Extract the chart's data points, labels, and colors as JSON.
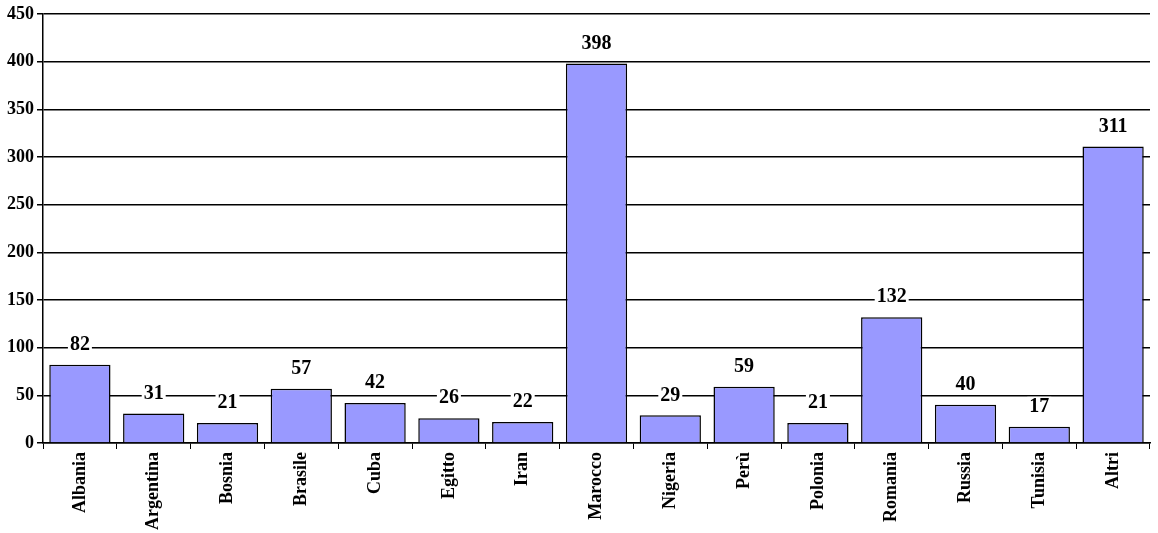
{
  "chart_data": {
    "type": "bar",
    "categories": [
      "Albania",
      "Argentina",
      "Bosnia",
      "Brasile",
      "Cuba",
      "Egitto",
      "Iran",
      "Marocco",
      "Nigeria",
      "Perù",
      "Polonia",
      "Romania",
      "Russia",
      "Tunisia",
      "Altri"
    ],
    "values": [
      82,
      31,
      21,
      57,
      42,
      26,
      22,
      398,
      29,
      59,
      21,
      132,
      40,
      17,
      311
    ],
    "color": "#9999ff",
    "ylim": [
      0,
      450
    ],
    "yticks": [
      0,
      50,
      100,
      150,
      200,
      250,
      300,
      350,
      400,
      450
    ],
    "grid": "y",
    "data_labels": true
  }
}
